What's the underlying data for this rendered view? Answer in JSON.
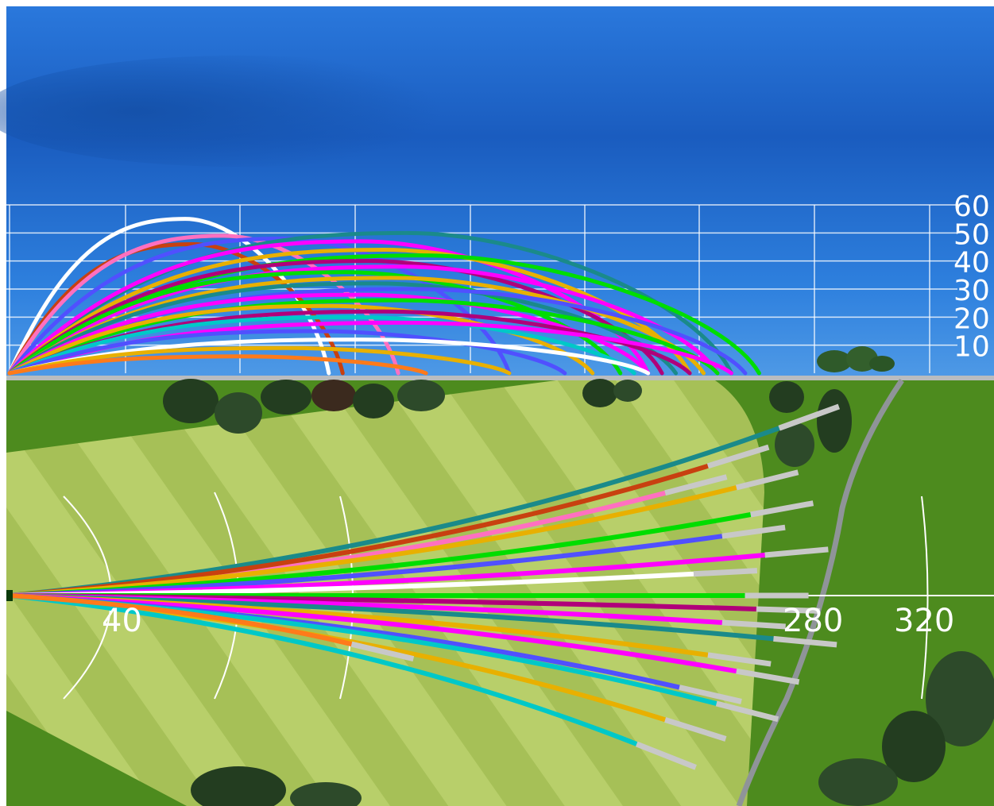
{
  "colors": {
    "sky_top": "#1d63c9",
    "sky_dark": "#1756b5",
    "sky_light": "#3a86e0",
    "rough": "#4f8a1f",
    "fairway": "#a8c45a",
    "fairway_stripe": "#b9d06b",
    "cart_path": "#8f9498",
    "grid": "#ffffff",
    "shot_palette": [
      "#ff00ff",
      "#e8b000",
      "#00dd00",
      "#1a8a8a",
      "#5050ff",
      "#b0007a",
      "#ffffff",
      "#ff70c0",
      "#c84010",
      "#00c8c8",
      "#ff7a1a",
      "#ffd000",
      "#cccccc"
    ]
  },
  "chart_data": [
    {
      "type": "line",
      "view": "side",
      "ylabel_ticks": [
        "10",
        "20",
        "30",
        "40",
        "50",
        "60"
      ],
      "ylim": [
        0,
        60
      ],
      "xlim": [
        0,
        340
      ],
      "grid": true,
      "shots_apex_carry_note": "shots shown as trajectories; apex and carry in data units",
      "shots": [
        {
          "apex": 55,
          "carry": 115,
          "color": "#ffffff"
        },
        {
          "apex": 46,
          "carry": 120,
          "color": "#c84010"
        },
        {
          "apex": 49,
          "carry": 140,
          "color": "#ff70c0"
        },
        {
          "apex": 48,
          "carry": 180,
          "color": "#5050ff"
        },
        {
          "apex": 50,
          "carry": 260,
          "color": "#1a8a8a"
        },
        {
          "apex": 47,
          "carry": 230,
          "color": "#ff00ff"
        },
        {
          "apex": 44,
          "carry": 245,
          "color": "#e8b000"
        },
        {
          "apex": 42,
          "carry": 270,
          "color": "#00dd00"
        },
        {
          "apex": 40,
          "carry": 235,
          "color": "#b0007a"
        },
        {
          "apex": 38,
          "carry": 255,
          "color": "#ff00ff"
        },
        {
          "apex": 36,
          "carry": 220,
          "color": "#00dd00"
        },
        {
          "apex": 34,
          "carry": 250,
          "color": "#e8b000"
        },
        {
          "apex": 32,
          "carry": 240,
          "color": "#1a8a8a"
        },
        {
          "apex": 30,
          "carry": 265,
          "color": "#5050ff"
        },
        {
          "apex": 28,
          "carry": 230,
          "color": "#ff00ff"
        },
        {
          "apex": 26,
          "carry": 255,
          "color": "#00dd00"
        },
        {
          "apex": 24,
          "carry": 210,
          "color": "#e8b000"
        },
        {
          "apex": 22,
          "carry": 245,
          "color": "#b0007a"
        },
        {
          "apex": 20,
          "carry": 225,
          "color": "#00c8c8"
        },
        {
          "apex": 18,
          "carry": 260,
          "color": "#ff00ff"
        },
        {
          "apex": 15,
          "carry": 200,
          "color": "#5050ff"
        },
        {
          "apex": 12,
          "carry": 230,
          "color": "#ffffff"
        },
        {
          "apex": 9,
          "carry": 180,
          "color": "#e8b000"
        },
        {
          "apex": 6,
          "carry": 150,
          "color": "#ff7a1a"
        }
      ]
    },
    {
      "type": "line",
      "view": "top",
      "x_tick_labels": [
        "40",
        "280",
        "320"
      ],
      "shots": [
        {
          "carry": 230,
          "side": -38,
          "color": "#ff70c0"
        },
        {
          "carry": 270,
          "side": -62,
          "color": "#1a8a8a"
        },
        {
          "carry": 245,
          "side": -48,
          "color": "#c84010"
        },
        {
          "carry": 255,
          "side": -40,
          "color": "#e8b000"
        },
        {
          "carry": 260,
          "side": -30,
          "color": "#00dd00"
        },
        {
          "carry": 250,
          "side": -22,
          "color": "#5050ff"
        },
        {
          "carry": 265,
          "side": -15,
          "color": "#ff00ff"
        },
        {
          "carry": 240,
          "side": -8,
          "color": "#ffffff"
        },
        {
          "carry": 258,
          "side": 0,
          "color": "#00dd00"
        },
        {
          "carry": 262,
          "side": 5,
          "color": "#b0007a"
        },
        {
          "carry": 250,
          "side": 10,
          "color": "#ff00ff"
        },
        {
          "carry": 268,
          "side": 16,
          "color": "#1a8a8a"
        },
        {
          "carry": 245,
          "side": 22,
          "color": "#e8b000"
        },
        {
          "carry": 255,
          "side": 28,
          "color": "#ff00ff"
        },
        {
          "carry": 235,
          "side": 34,
          "color": "#5050ff"
        },
        {
          "carry": 248,
          "side": 40,
          "color": "#00c8c8"
        },
        {
          "carry": 230,
          "side": 46,
          "color": "#e8b000"
        },
        {
          "carry": 220,
          "side": 55,
          "color": "#00c8c8"
        },
        {
          "carry": 120,
          "side": 18,
          "color": "#ff7a1a"
        }
      ]
    }
  ]
}
